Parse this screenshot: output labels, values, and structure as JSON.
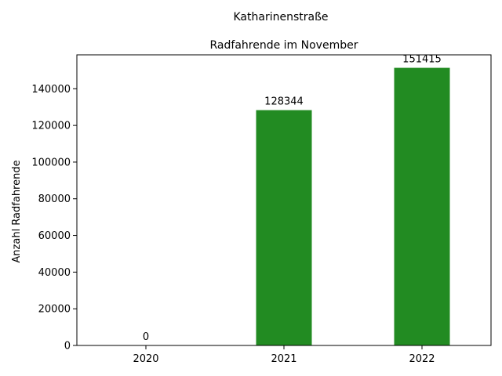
{
  "figure": {
    "suptitle": "Katharinenstraße"
  },
  "chart_data": {
    "type": "bar",
    "title": "Radfahrende im November",
    "xlabel": "",
    "ylabel": "Anzahl Radfahrende",
    "categories": [
      "2020",
      "2021",
      "2022"
    ],
    "values": [
      0,
      128344,
      151415
    ],
    "data_labels": [
      "0",
      "128344",
      "151415"
    ],
    "ylim": [
      0,
      158500
    ],
    "yticks": [
      0,
      20000,
      40000,
      60000,
      80000,
      100000,
      120000,
      140000
    ],
    "ytick_labels": [
      "0",
      "20000",
      "40000",
      "60000",
      "80000",
      "100000",
      "120000",
      "140000"
    ],
    "bar_color": "#228b22",
    "grid": false,
    "legend": "none"
  }
}
